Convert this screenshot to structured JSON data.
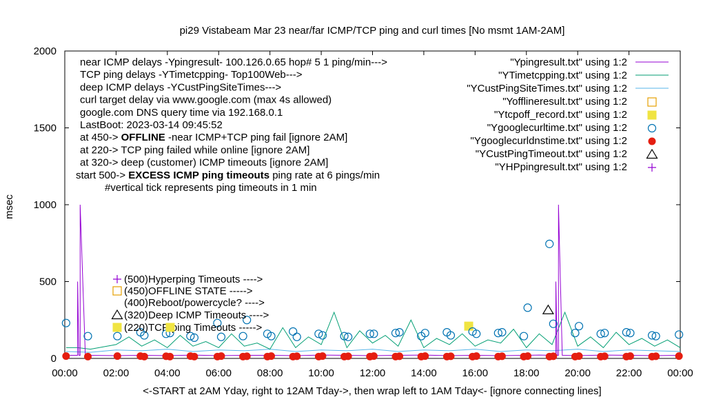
{
  "chart_data": {
    "type": "line",
    "title": "pi29 Vistabeam Mar 23  near/far ICMP/TCP ping and curl times [No msmt 1AM-2AM]",
    "ylabel": "msec",
    "xlabel": "<-START at 2AM Yday, right to 12AM Tday->, then wrap left to 1AM Tday<- [ignore connecting lines]",
    "ylim": [
      0,
      2000
    ],
    "xlim": [
      0,
      24
    ],
    "yticks": [
      0,
      500,
      1000,
      1500,
      2000
    ],
    "xtick_labels": [
      "00:00",
      "02:00",
      "04:00",
      "06:00",
      "08:00",
      "10:00",
      "12:00",
      "14:00",
      "16:00",
      "18:00",
      "20:00",
      "22:00",
      "00:00"
    ],
    "grid": false,
    "legend_position": "top-right",
    "info_text": [
      "near ICMP delays -Ypingresult- 100.126.0.65 hop# 5 1 ping/min--->",
      "TCP ping delays -YTimetcpping- Top100Web--->",
      "deep ICMP delays -YCustPingSiteTimes--->",
      "curl target delay via www.google.com (max 4s allowed)",
      "google.com DNS query time via 192.168.0.1",
      "LastBoot: 2023-03-14 09:45:52"
    ],
    "state_notes": [
      {
        "prefix": "at 450-> ",
        "bold": "OFFLINE",
        "suffix": " -near ICMP+TCP ping fail [ignore 2AM]"
      },
      {
        "prefix": "at 220-> TCP ping failed while online [ignore 2AM]",
        "bold": "",
        "suffix": ""
      },
      {
        "prefix": "at 320-> deep (customer) ICMP timeouts [ignore 2AM]",
        "bold": "",
        "suffix": ""
      },
      {
        "prefix": "start 500-> ",
        "bold": "EXCESS ICMP ping timeouts",
        "suffix": " ping rate at 6 pings/min"
      }
    ],
    "tick_note": "#vertical tick represents ping timeouts in 1 min",
    "marker_labels": [
      "(500)Hyperping Timeouts ---->",
      "(450)OFFLINE STATE ----->",
      "(400)Reboot/powercycle? ---->",
      "(320)Deep ICMP Timeouts ---->",
      "(220)TCP ping Timeouts ----->"
    ],
    "colors": {
      "purple": "#9400d3",
      "teal": "#009e73",
      "lightblue": "#56b4e9",
      "orange": "#e69f00",
      "yellow": "#f0e442",
      "blue": "#0072b2",
      "red": "#e51e10"
    },
    "series": [
      {
        "name": "\"Ypingresult.txt\" using 1:2",
        "style": "line",
        "color": "#9400d3",
        "x": [
          0.2,
          0.35,
          0.5,
          0.5,
          0.55,
          0.6,
          0.6,
          0.8,
          2.0,
          3.0,
          4.0,
          5.0,
          6.0,
          7.0,
          8.0,
          9.0,
          10.0,
          11.0,
          12.0,
          13.0,
          14.0,
          15.0,
          16.0,
          17.0,
          18.0,
          18.5,
          19.0,
          19.15,
          19.15,
          19.2,
          19.25,
          19.25,
          19.4,
          20.0,
          21.0,
          22.0,
          23.0,
          24.0
        ],
        "y": [
          20,
          20,
          20,
          500,
          20,
          20,
          1000,
          20,
          18,
          20,
          18,
          22,
          18,
          20,
          20,
          18,
          22,
          20,
          18,
          20,
          22,
          18,
          20,
          18,
          20,
          22,
          20,
          20,
          500,
          20,
          20,
          1000,
          20,
          18,
          22,
          20,
          18,
          20
        ]
      },
      {
        "name": "\"YTimetcpping.txt\" using 1:2",
        "style": "line",
        "color": "#009e73",
        "x": [
          0.05,
          0.5,
          1.0,
          2.0,
          2.5,
          3.0,
          3.5,
          4.0,
          4.5,
          5.0,
          5.5,
          6.0,
          6.5,
          7.0,
          7.5,
          8.0,
          8.5,
          9.0,
          9.5,
          10.0,
          10.5,
          11.0,
          11.5,
          12.0,
          12.5,
          13.0,
          13.5,
          14.0,
          14.5,
          15.0,
          15.5,
          16.0,
          16.5,
          17.0,
          17.5,
          18.0,
          18.5,
          19.0,
          19.5,
          20.0,
          20.5,
          21.0,
          21.5,
          22.0,
          22.5,
          23.0,
          23.5,
          24.0
        ],
        "y": [
          70,
          70,
          60,
          90,
          140,
          80,
          120,
          70,
          150,
          80,
          110,
          70,
          160,
          80,
          100,
          60,
          200,
          70,
          140,
          90,
          300,
          70,
          180,
          100,
          150,
          80,
          250,
          70,
          130,
          90,
          160,
          80,
          120,
          100,
          190,
          70,
          160,
          90,
          300,
          80,
          140,
          70,
          170,
          90,
          130,
          80,
          120,
          70
        ]
      },
      {
        "name": "\"YCustPingSiteTimes.txt\" using 1:2",
        "style": "line",
        "color": "#56b4e9",
        "x": [
          0.05,
          1.0,
          2.0,
          3.0,
          4.0,
          5.0,
          6.0,
          7.0,
          8.0,
          9.0,
          10.0,
          11.0,
          12.0,
          13.0,
          14.0,
          15.0,
          16.0,
          17.0,
          18.0,
          19.0,
          20.0,
          21.0,
          22.0,
          23.0,
          24.0
        ],
        "y": [
          45,
          40,
          55,
          50,
          60,
          45,
          55,
          50,
          60,
          45,
          55,
          50,
          60,
          45,
          55,
          50,
          60,
          45,
          55,
          50,
          60,
          45,
          55,
          50,
          45
        ]
      },
      {
        "name": "\"Yofflineresult.txt\" using 1:2",
        "style": "open-square",
        "color": "#e69f00",
        "x": [],
        "y": []
      },
      {
        "name": "\"Ytcpoff_record.txt\" using 1:2",
        "style": "filled-square",
        "color": "#f0e442",
        "x": [
          15.75
        ],
        "y": [
          210
        ]
      },
      {
        "name": "\"Ygooglecurltime.txt\" using 1:2",
        "style": "open-circle",
        "color": "#0072b2",
        "x": [
          0.05,
          0.9,
          2.05,
          2.95,
          3.1,
          3.95,
          4.1,
          4.9,
          5.05,
          5.95,
          6.1,
          6.95,
          7.1,
          7.9,
          8.05,
          8.9,
          9.05,
          9.9,
          10.05,
          10.9,
          11.05,
          11.9,
          12.05,
          12.9,
          13.05,
          13.9,
          14.05,
          14.9,
          15.05,
          15.9,
          16.05,
          16.9,
          17.05,
          17.9,
          18.05,
          18.9,
          19.05,
          19.9,
          20.05,
          20.9,
          21.05,
          21.9,
          22.05,
          22.9,
          23.05,
          23.95
        ],
        "y": [
          230,
          145,
          145,
          170,
          150,
          160,
          165,
          145,
          135,
          230,
          140,
          145,
          250,
          160,
          145,
          175,
          140,
          160,
          150,
          145,
          140,
          160,
          160,
          165,
          170,
          145,
          165,
          170,
          150,
          175,
          160,
          165,
          170,
          145,
          330,
          745,
          225,
          165,
          210,
          160,
          165,
          170,
          165,
          150,
          145,
          155
        ]
      },
      {
        "name": "\"Ygooglecurldnstime.txt\" using 1:2",
        "style": "filled-circle",
        "color": "#e51e10",
        "x": [
          0.05,
          0.9,
          2.05,
          2.95,
          3.1,
          3.95,
          4.1,
          4.9,
          5.05,
          5.95,
          6.1,
          6.95,
          7.1,
          7.9,
          8.05,
          8.9,
          9.05,
          9.9,
          10.05,
          10.9,
          11.05,
          11.9,
          12.05,
          12.9,
          13.05,
          13.9,
          14.05,
          14.9,
          15.05,
          15.9,
          16.05,
          16.9,
          17.05,
          17.9,
          18.05,
          18.9,
          19.05,
          19.9,
          20.05,
          20.9,
          21.05,
          21.9,
          22.05,
          22.9,
          23.05,
          23.95
        ],
        "y": [
          15,
          12,
          15,
          15,
          12,
          14,
          12,
          15,
          12,
          12,
          15,
          12,
          14,
          12,
          15,
          12,
          14,
          12,
          15,
          12,
          14,
          12,
          15,
          12,
          14,
          12,
          15,
          12,
          14,
          12,
          15,
          12,
          14,
          12,
          15,
          12,
          14,
          12,
          15,
          12,
          14,
          12,
          15,
          12,
          14,
          15
        ]
      },
      {
        "name": "\"YCustPingTimeout.txt\" using 1:2",
        "style": "open-triangle",
        "color": "#000000",
        "x": [
          18.85
        ],
        "y": [
          315
        ]
      },
      {
        "name": "\"YHPpingresult.txt\" using 1:2",
        "style": "plus",
        "color": "#9400d3",
        "x": [],
        "y": []
      }
    ]
  }
}
